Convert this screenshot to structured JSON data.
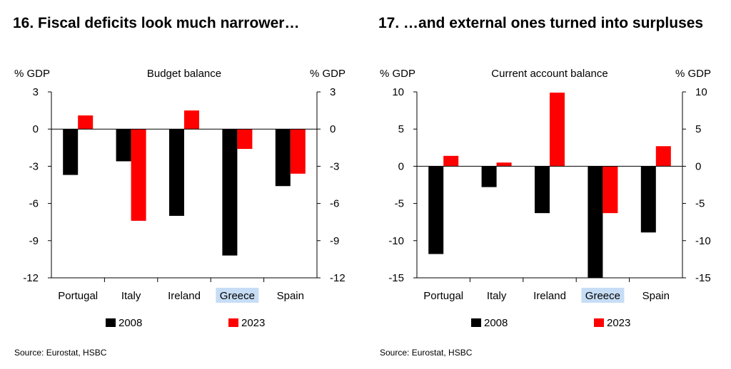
{
  "charts": [
    {
      "title": "16. Fiscal deficits look much narrower…",
      "source": "Source: Eurostat, HSBC",
      "chart_data": {
        "type": "bar",
        "title": "Budget balance",
        "ylabel_left": "% GDP",
        "ylabel_right": "% GDP",
        "categories": [
          "Portugal",
          "Italy",
          "Ireland",
          "Greece",
          "Spain"
        ],
        "highlighted_category": "Greece",
        "series": [
          {
            "name": "2008",
            "color": "#000000",
            "values": [
              -3.7,
              -2.6,
              -7.0,
              -10.2,
              -4.6
            ]
          },
          {
            "name": "2023",
            "color": "#ff0000",
            "values": [
              1.1,
              -7.4,
              1.5,
              -1.6,
              -3.6
            ]
          }
        ],
        "ylim": [
          -12,
          3
        ],
        "yticks": [
          "3",
          "0",
          "-3",
          "-6",
          "-9",
          "-12"
        ],
        "ytick_values": [
          3,
          0,
          -3,
          -6,
          -9,
          -12
        ],
        "grid": false,
        "legend_position": "bottom"
      }
    },
    {
      "title": "17. …and external ones turned into surpluses",
      "source": "Source: Eurostat, HSBC",
      "chart_data": {
        "type": "bar",
        "title": "Current account balance",
        "ylabel_left": "% GDP",
        "ylabel_right": "% GDP",
        "categories": [
          "Portugal",
          "Italy",
          "Ireland",
          "Greece",
          "Spain"
        ],
        "highlighted_category": "Greece",
        "series": [
          {
            "name": "2008",
            "color": "#000000",
            "values": [
              -11.8,
              -2.8,
              -6.3,
              -15.0,
              -8.9
            ]
          },
          {
            "name": "2023",
            "color": "#ff0000",
            "values": [
              1.4,
              0.5,
              9.9,
              -6.3,
              2.7
            ]
          }
        ],
        "ylim": [
          -15,
          10
        ],
        "yticks": [
          "10",
          "5",
          "0",
          "-5",
          "-10",
          "-15"
        ],
        "ytick_values": [
          10,
          5,
          0,
          -5,
          -10,
          -15
        ],
        "grid": false,
        "legend_position": "bottom"
      }
    }
  ]
}
